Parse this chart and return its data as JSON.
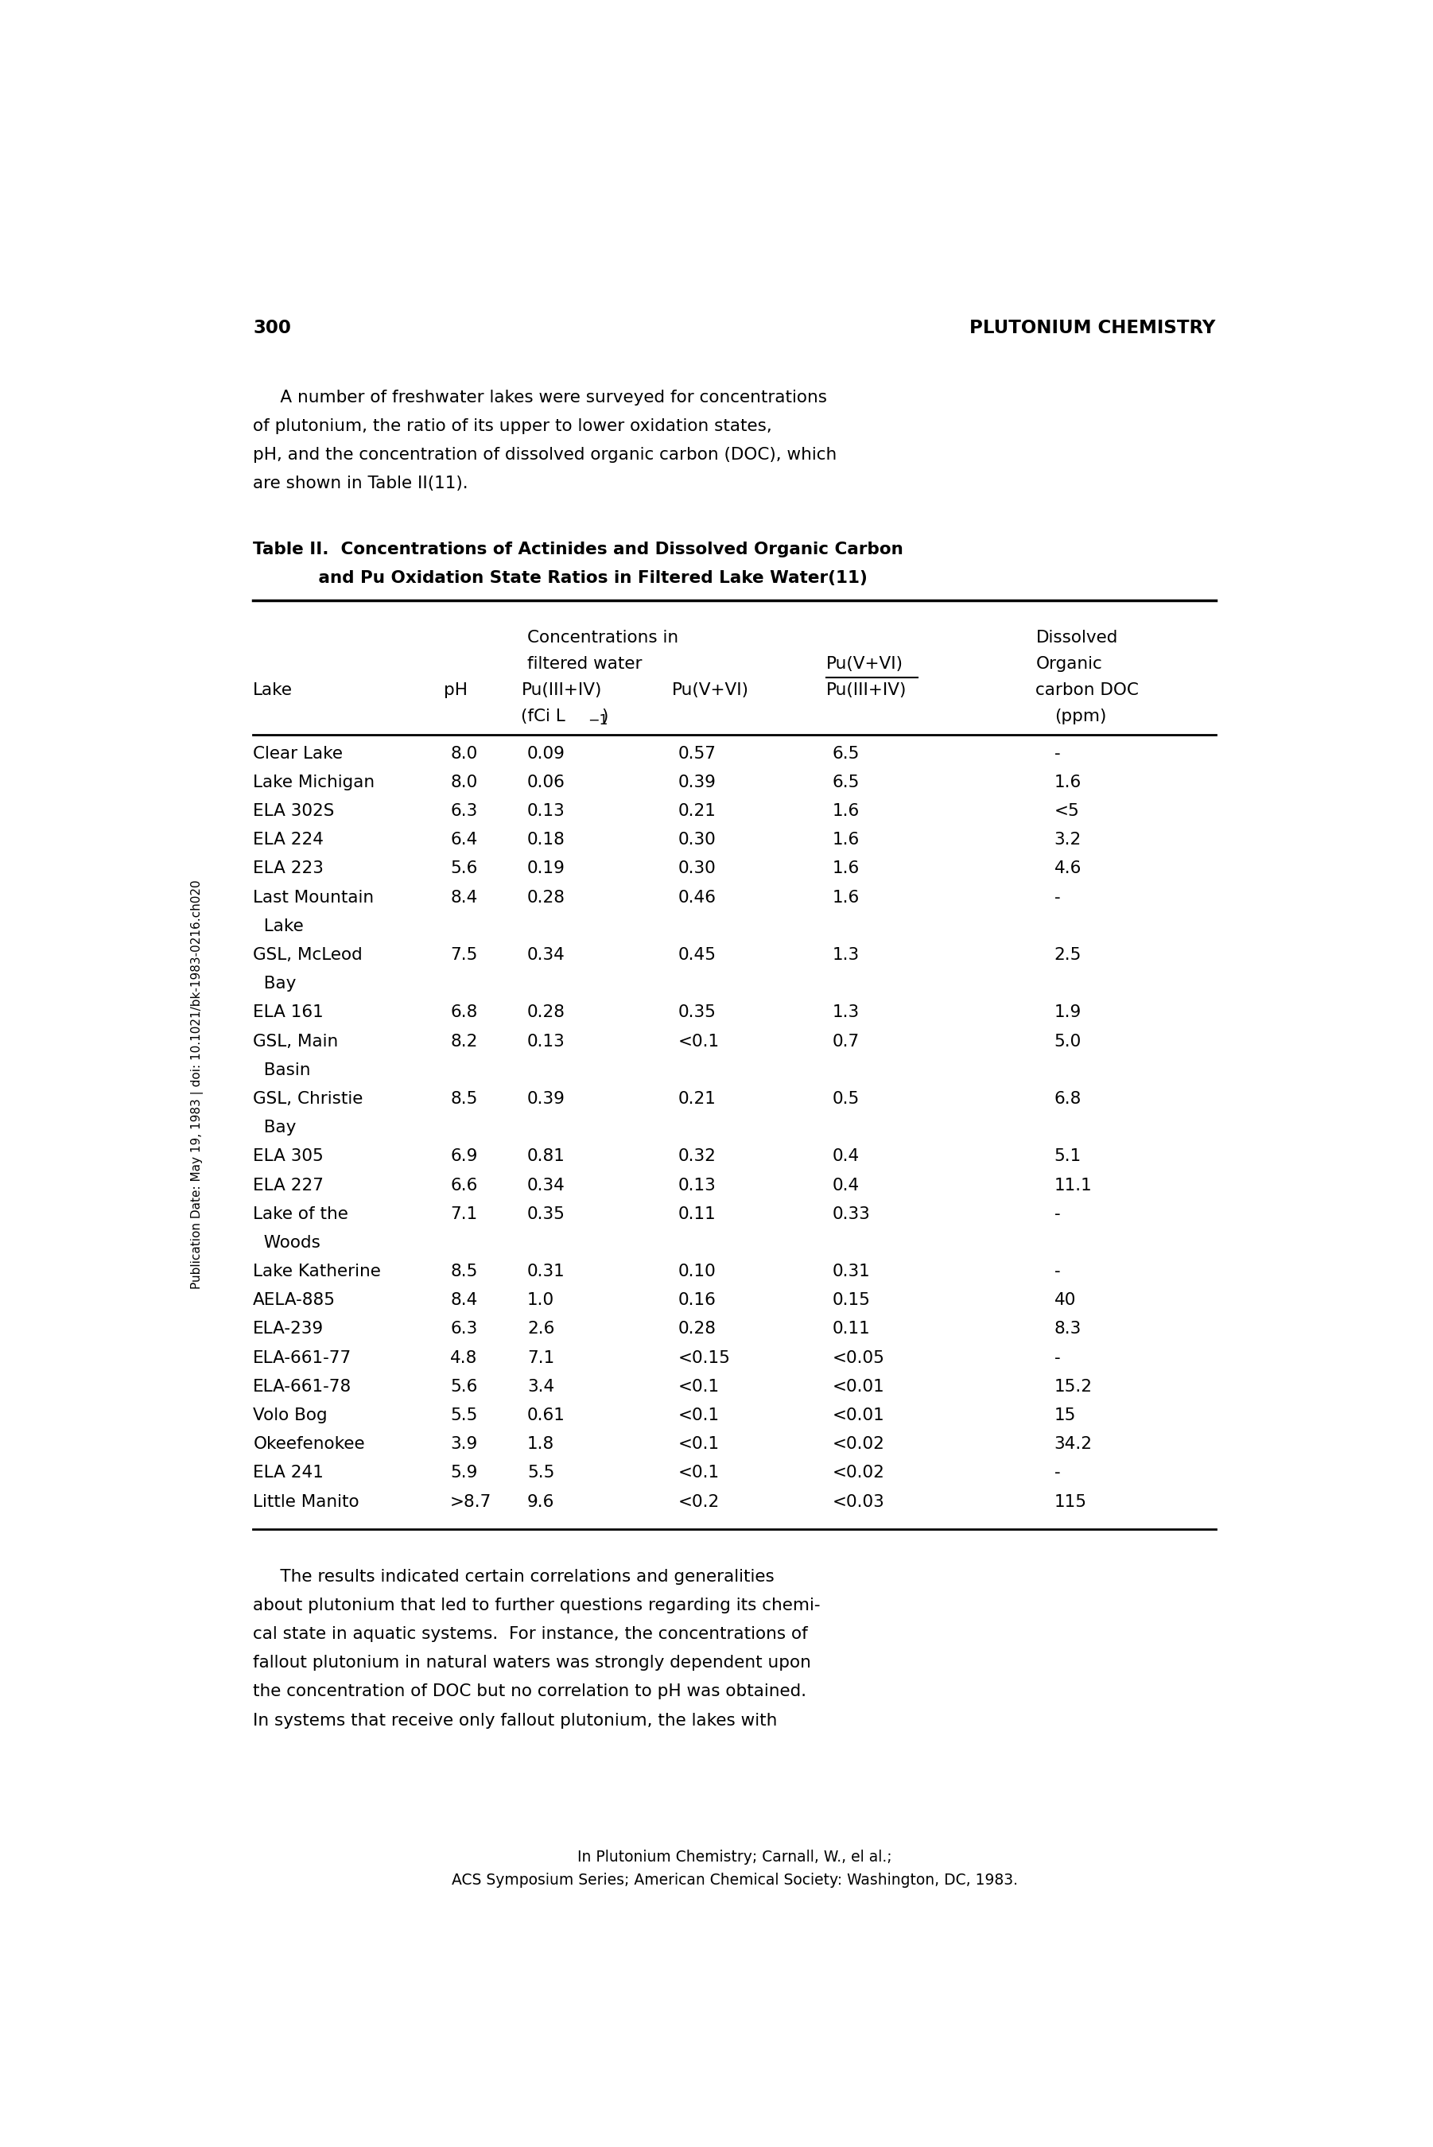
{
  "page_number": "300",
  "page_header": "PLUTONIUM CHEMISTRY",
  "intro_text": [
    "     A number of freshwater lakes were surveyed for concentrations",
    "of plutonium, the ratio of its upper to lower oxidation states,",
    "pH, and the concentration of dissolved organic carbon (DOC), which",
    "are shown in Table II(11)."
  ],
  "table_title_line1": "Table II.  Concentrations of Actinides and Dissolved Organic Carbon",
  "table_title_line2": "           and Pu Oxidation State Ratios in Filtered Lake Water(11)",
  "table_data": [
    [
      "Clear Lake",
      "8.0",
      "0.09",
      "0.57",
      "6.5",
      "-"
    ],
    [
      "Lake Michigan",
      "8.0",
      "0.06",
      "0.39",
      "6.5",
      "1.6"
    ],
    [
      "ELA 302S",
      "6.3",
      "0.13",
      "0.21",
      "1.6",
      "<5"
    ],
    [
      "ELA 224",
      "6.4",
      "0.18",
      "0.30",
      "1.6",
      "3.2"
    ],
    [
      "ELA 223",
      "5.6",
      "0.19",
      "0.30",
      "1.6",
      "4.6"
    ],
    [
      "Last Mountain",
      "8.4",
      "0.28",
      "0.46",
      "1.6",
      "-"
    ],
    [
      "  Lake",
      "",
      "",
      "",
      "",
      ""
    ],
    [
      "GSL, McLeod",
      "7.5",
      "0.34",
      "0.45",
      "1.3",
      "2.5"
    ],
    [
      "  Bay",
      "",
      "",
      "",
      "",
      ""
    ],
    [
      "ELA 161",
      "6.8",
      "0.28",
      "0.35",
      "1.3",
      "1.9"
    ],
    [
      "GSL, Main",
      "8.2",
      "0.13",
      "<0.1",
      "0.7",
      "5.0"
    ],
    [
      "  Basin",
      "",
      "",
      "",
      "",
      ""
    ],
    [
      "GSL, Christie",
      "8.5",
      "0.39",
      "0.21",
      "0.5",
      "6.8"
    ],
    [
      "  Bay",
      "",
      "",
      "",
      "",
      ""
    ],
    [
      "ELA 305",
      "6.9",
      "0.81",
      "0.32",
      "0.4",
      "5.1"
    ],
    [
      "ELA 227",
      "6.6",
      "0.34",
      "0.13",
      "0.4",
      "11.1"
    ],
    [
      "Lake of the",
      "7.1",
      "0.35",
      "0.11",
      "0.33",
      "-"
    ],
    [
      "  Woods",
      "",
      "",
      "",
      "",
      ""
    ],
    [
      "Lake Katherine",
      "8.5",
      "0.31",
      "0.10",
      "0.31",
      "-"
    ],
    [
      "AELA-885",
      "8.4",
      "1.0",
      "0.16",
      "0.15",
      "40"
    ],
    [
      "ELA-239",
      "6.3",
      "2.6",
      "0.28",
      "0.11",
      "8.3"
    ],
    [
      "ELA-661-77",
      "4.8",
      "7.1",
      "<0.15",
      "<0.05",
      "-"
    ],
    [
      "ELA-661-78",
      "5.6",
      "3.4",
      "<0.1",
      "<0.01",
      "15.2"
    ],
    [
      "Volo Bog",
      "5.5",
      "0.61",
      "<0.1",
      "<0.01",
      "15"
    ],
    [
      "Okeefenokee",
      "3.9",
      "1.8",
      "<0.1",
      "<0.02",
      "34.2"
    ],
    [
      "ELA 241",
      "5.9",
      "5.5",
      "<0.1",
      "<0.02",
      "-"
    ],
    [
      "Little Manito",
      ">8.7",
      "9.6",
      "<0.2",
      "<0.03",
      "115"
    ]
  ],
  "bottom_text": [
    "     The results indicated certain correlations and generalities",
    "about plutonium that led to further questions regarding its chemi-",
    "cal state in aquatic systems.  For instance, the concentrations of",
    "fallout plutonium in natural waters was strongly dependent upon",
    "the concentration of DOC but no correlation to pH was obtained.",
    "In systems that receive only fallout plutonium, the lakes with"
  ],
  "footer_line1": "In Plutonium Chemistry; Carnall, W., el al.;",
  "footer_line2": "ACS Symposium Series; American Chemical Society: Washington, DC, 1983.",
  "sidebar_text": "Publication Date: May 19, 1983 | doi: 10.1021/bk-1983-0216.ch020",
  "bg_color": "#ffffff",
  "text_color": "#000000"
}
